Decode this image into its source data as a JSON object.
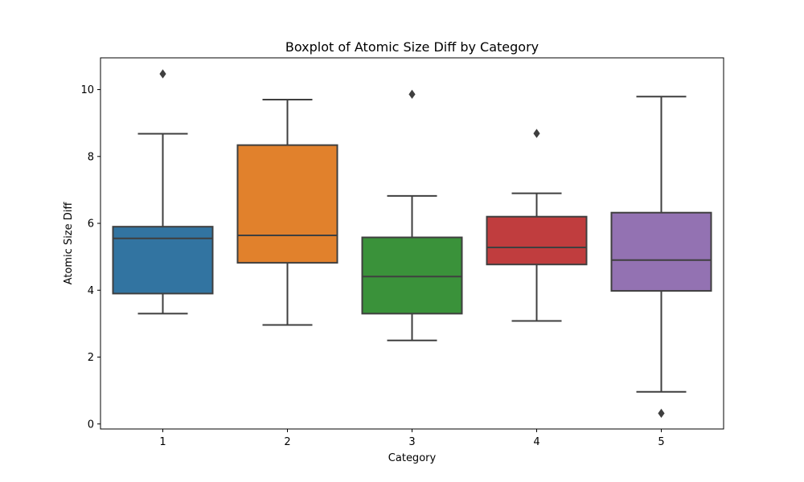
{
  "chart_data": {
    "type": "box",
    "title": "Boxplot of Atomic Size Diff by Category",
    "xlabel": "Category",
    "ylabel": "Atomic Size Diff",
    "categories": [
      "1",
      "2",
      "3",
      "4",
      "5"
    ],
    "ylim": [
      -0.15,
      10.95
    ],
    "yticks": [
      0,
      2,
      4,
      6,
      8,
      10
    ],
    "grid": false,
    "boxes": [
      {
        "category": "1",
        "whisker_low": 3.3,
        "q1": 3.9,
        "median": 5.55,
        "q3": 5.9,
        "whisker_high": 8.68,
        "outliers": [
          10.47
        ],
        "color": "#3274a1"
      },
      {
        "category": "2",
        "whisker_low": 2.96,
        "q1": 4.82,
        "median": 5.64,
        "q3": 8.34,
        "whisker_high": 9.7,
        "outliers": [],
        "color": "#e1812c"
      },
      {
        "category": "3",
        "whisker_low": 2.5,
        "q1": 3.3,
        "median": 4.41,
        "q3": 5.58,
        "whisker_high": 6.82,
        "outliers": [
          9.86
        ],
        "color": "#3a923a"
      },
      {
        "category": "4",
        "whisker_low": 3.08,
        "q1": 4.77,
        "median": 5.28,
        "q3": 6.2,
        "whisker_high": 6.9,
        "outliers": [
          8.69
        ],
        "color": "#c03d3e"
      },
      {
        "category": "5",
        "whisker_low": 0.96,
        "q1": 3.98,
        "median": 4.9,
        "q3": 6.32,
        "whisker_high": 9.79,
        "outliers": [
          0.32
        ],
        "color": "#9372b2"
      }
    ],
    "line_color": "#3f3f3f"
  }
}
